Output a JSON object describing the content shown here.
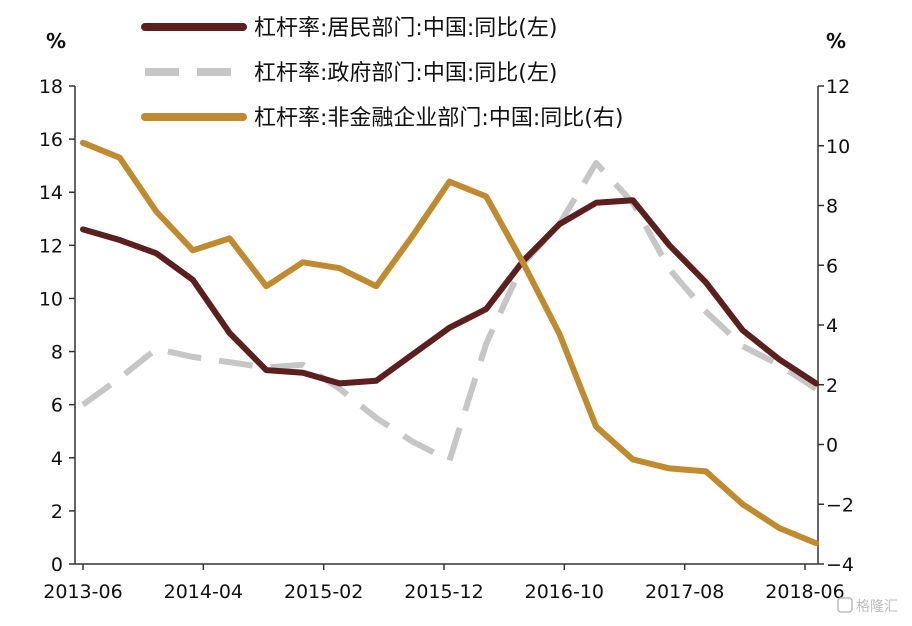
{
  "chart_data": {
    "type": "line",
    "left_unit": "%",
    "right_unit": "%",
    "x_tick_labels": [
      "2013-06",
      "2014-04",
      "2015-02",
      "2015-12",
      "2016-10",
      "2017-08",
      "2018-06"
    ],
    "left_ylim": [
      0,
      18
    ],
    "left_yticks": [
      "0",
      "2",
      "4",
      "6",
      "8",
      "10",
      "12",
      "14",
      "16",
      "18"
    ],
    "right_ylim": [
      -4,
      12
    ],
    "right_yticks": [
      "−4",
      "−2",
      "0",
      "2",
      "4",
      "6",
      "8",
      "10",
      "12"
    ],
    "x": [
      "2013-06",
      "2013-09",
      "2013-12",
      "2014-03",
      "2014-06",
      "2014-09",
      "2014-12",
      "2015-03",
      "2015-06",
      "2015-09",
      "2015-12",
      "2016-03",
      "2016-06",
      "2016-09",
      "2016-12",
      "2017-03",
      "2017-06",
      "2017-09",
      "2017-12",
      "2018-03",
      "2018-06"
    ],
    "grid": false,
    "legend_position": "top",
    "series": [
      {
        "name": "杠杆率:居民部门:中国:同比(左)",
        "axis": "left",
        "color": "#5b1f1f",
        "style": "solid",
        "values": [
          12.6,
          12.2,
          11.7,
          10.7,
          8.7,
          7.3,
          7.2,
          6.8,
          6.9,
          7.9,
          8.9,
          9.6,
          11.4,
          12.8,
          13.6,
          13.7,
          12.0,
          10.6,
          8.8,
          7.7,
          6.8
        ]
      },
      {
        "name": "杠杆率:政府部门:中国:同比(左)",
        "axis": "left",
        "color": "#c6c6c6",
        "style": "dashed",
        "values": [
          6.0,
          7.0,
          8.1,
          7.8,
          7.6,
          7.4,
          7.5,
          6.6,
          5.5,
          4.6,
          3.9,
          8.3,
          11.3,
          12.8,
          15.1,
          13.6,
          11.1,
          9.5,
          8.2,
          7.5,
          6.6
        ]
      },
      {
        "name": "杠杆率:非金融企业部门:中国:同比(右)",
        "axis": "right",
        "color": "#c08a2e",
        "style": "solid",
        "values": [
          10.1,
          9.6,
          7.8,
          6.5,
          6.9,
          5.3,
          6.1,
          5.9,
          5.3,
          7.0,
          8.8,
          8.3,
          6.1,
          3.7,
          0.6,
          -0.5,
          -0.8,
          -0.9,
          -2.0,
          -2.8,
          -3.3
        ]
      }
    ]
  },
  "watermark": "格隆汇"
}
